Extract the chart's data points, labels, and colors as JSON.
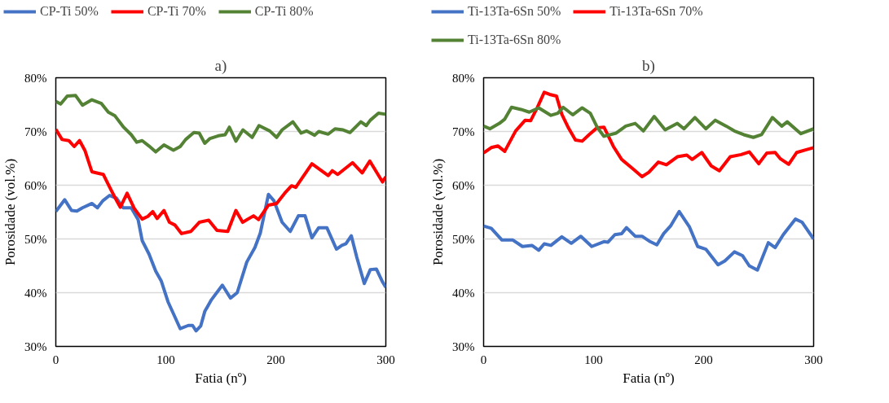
{
  "chart_data": [
    {
      "type": "line",
      "title": "a)",
      "xlabel": "Fatia (nº)",
      "ylabel": "Porosidade (vol.%)",
      "xlim": [
        0,
        300
      ],
      "xticks": [
        0,
        100,
        200,
        300
      ],
      "ylim": [
        30,
        80
      ],
      "yticks": [
        {
          "value": 30,
          "label": "30%"
        },
        {
          "value": 40,
          "label": "40%"
        },
        {
          "value": 50,
          "label": "50%"
        },
        {
          "value": 60,
          "label": "60%"
        },
        {
          "value": 70,
          "label": "70%"
        },
        {
          "value": 80,
          "label": "80%"
        }
      ],
      "grid": "y",
      "legend": "top",
      "marker": "none",
      "line_style": "solid",
      "series": [
        {
          "name": "CP-Ti 50%",
          "color": "#4472c4",
          "x": [
            0,
            8.1,
            14.3,
            19.2,
            24.2,
            32.8,
            37.8,
            42.7,
            48.9,
            55.1,
            61.2,
            68.6,
            74.8,
            78.5,
            84.7,
            90.8,
            95.8,
            102,
            106.9,
            113.1,
            120.5,
            124.3,
            127.5,
            131.7,
            135.4,
            141.5,
            151.4,
            158.8,
            164.9,
            173.6,
            181,
            185.9,
            193.3,
            198.3,
            205.7,
            213.1,
            220.5,
            226.6,
            232.8,
            239,
            246.4,
            255.1,
            260,
            263.7,
            268.6,
            273.6,
            280.4,
            285.9,
            291.4,
            297,
            300
          ],
          "values": [
            55.1,
            57.3,
            55.3,
            55.2,
            55.8,
            56.6,
            55.8,
            57.1,
            58.1,
            57.6,
            55.8,
            55.8,
            53.6,
            49.7,
            47.2,
            44,
            42.2,
            38.3,
            36.1,
            33.3,
            33.9,
            33.9,
            32.9,
            33.8,
            36.5,
            38.7,
            41.4,
            39,
            40,
            45.7,
            48.4,
            51.1,
            58.3,
            57.1,
            53.1,
            51.4,
            54.3,
            54.3,
            50.2,
            52.1,
            52.1,
            48.1,
            48.8,
            49.1,
            50.6,
            46.6,
            41.7,
            44.3,
            44.4,
            42,
            41
          ]
        },
        {
          "name": "CP-Ti 70%",
          "color": "#ff0000",
          "x": [
            0,
            5.7,
            11.8,
            16.7,
            21.6,
            26.6,
            32.8,
            39,
            43.2,
            49.3,
            54.3,
            58.6,
            64.8,
            71.5,
            78.5,
            83.7,
            88.1,
            92.1,
            98.3,
            103.3,
            108.2,
            114.3,
            122.8,
            130.4,
            139,
            146.5,
            156.3,
            163.7,
            169.8,
            179.7,
            184.3,
            193.3,
            200.7,
            208,
            214.3,
            218.1,
            232.8,
            247.6,
            251.3,
            256.3,
            269.8,
            278.5,
            285.4,
            297,
            300
          ],
          "values": [
            70.4,
            68.5,
            68.3,
            67.2,
            68.3,
            66.4,
            62.5,
            62.2,
            62,
            59.5,
            57.5,
            55.9,
            58.5,
            55.6,
            53.7,
            54.2,
            55.1,
            53.8,
            55.3,
            53.1,
            52.6,
            51,
            51.4,
            53.1,
            53.5,
            51.6,
            51.4,
            55.3,
            53.1,
            54.3,
            53.6,
            56.3,
            56.6,
            58.5,
            59.9,
            59.6,
            64,
            61.8,
            62.7,
            62,
            64.2,
            62.3,
            64.5,
            60.6,
            61.6
          ]
        },
        {
          "name": "CP-Ti 80%",
          "color": "#548235",
          "x": [
            0,
            4.4,
            10.4,
            18,
            24.2,
            32.8,
            41.5,
            47.7,
            53.8,
            61.2,
            68.6,
            73.6,
            78.5,
            84.7,
            90.8,
            98.3,
            106.9,
            113.1,
            118,
            125.5,
            130.4,
            135.4,
            140.2,
            147.7,
            153.9,
            157.8,
            163.7,
            170.1,
            178.5,
            184.7,
            194.5,
            200.7,
            205.7,
            215.5,
            223,
            227.9,
            235.3,
            239,
            247.6,
            253.8,
            261.2,
            267.4,
            277.3,
            282.2,
            285.9,
            293.3,
            300
          ],
          "values": [
            75.6,
            75.1,
            76.6,
            76.7,
            74.9,
            75.9,
            75.2,
            73.6,
            72.9,
            70.9,
            69.4,
            68,
            68.3,
            67.3,
            66.2,
            67.5,
            66.5,
            67.2,
            68.5,
            69.8,
            69.7,
            67.8,
            68.7,
            69.2,
            69.4,
            70.8,
            68.2,
            70.3,
            68.9,
            71.1,
            70.1,
            68.9,
            70.3,
            71.8,
            69.7,
            70.1,
            69.3,
            70,
            69.5,
            70.5,
            70.3,
            69.8,
            71.8,
            71.1,
            72.1,
            73.4,
            73.2
          ]
        }
      ]
    },
    {
      "type": "line",
      "title": "b)",
      "xlabel": "Fatia (nº)",
      "ylabel": "Porosidade (vol.%)",
      "xlim": [
        0,
        300
      ],
      "xticks": [
        0,
        100,
        200,
        300
      ],
      "ylim": [
        30,
        80
      ],
      "yticks": [
        {
          "value": 30,
          "label": "30%"
        },
        {
          "value": 40,
          "label": "40%"
        },
        {
          "value": 50,
          "label": "50%"
        },
        {
          "value": 60,
          "label": "60%"
        },
        {
          "value": 70,
          "label": "70%"
        },
        {
          "value": 80,
          "label": "80%"
        }
      ],
      "grid": "y",
      "legend": "top",
      "marker": "none",
      "line_style": "solid",
      "series": [
        {
          "name": "Ti-13Ta-6Sn 50%",
          "color": "#4472c4",
          "x": [
            0,
            6.9,
            16.7,
            26.6,
            35.3,
            43.9,
            50.1,
            55.1,
            61.2,
            71.1,
            79.7,
            88.4,
            98.3,
            109.4,
            113.1,
            119.3,
            125.5,
            129.9,
            137.8,
            144,
            151.4,
            157.5,
            163.7,
            169.9,
            177.8,
            187.2,
            194.6,
            202,
            213.1,
            219.3,
            228,
            235.3,
            241.5,
            248.9,
            258.8,
            265,
            272.4,
            283.5,
            289.6,
            300
          ],
          "values": [
            52.4,
            52,
            49.8,
            49.8,
            48.6,
            48.8,
            47.9,
            49.1,
            48.8,
            50.4,
            49.2,
            50.5,
            48.6,
            49.5,
            49.4,
            50.8,
            51,
            52.1,
            50.5,
            50.5,
            49.5,
            48.9,
            51,
            52.4,
            55.1,
            52.2,
            48.6,
            48.1,
            45.2,
            45.9,
            47.6,
            46.9,
            45,
            44.2,
            49.3,
            48.4,
            50.8,
            53.7,
            53.1,
            50
          ]
        },
        {
          "name": "Ti-13Ta-6Sn 70%",
          "color": "#ff0000",
          "x": [
            0,
            6.9,
            13.1,
            19.2,
            29.1,
            37.8,
            42.7,
            48.9,
            55.1,
            60,
            66.2,
            71.1,
            77.3,
            83.5,
            89.6,
            95.8,
            103.2,
            109.4,
            118,
            125.5,
            135.4,
            144,
            150.2,
            158.8,
            166.2,
            176.1,
            184.7,
            189.6,
            198.3,
            206.9,
            214.3,
            224.2,
            234.1,
            241.5,
            250.1,
            257.5,
            265,
            269.9,
            277.3,
            284.7,
            293.3,
            300
          ],
          "values": [
            66,
            67,
            67.3,
            66.3,
            70.1,
            72.1,
            72,
            74.5,
            77.3,
            76.9,
            76.6,
            73.2,
            70.6,
            68.4,
            68.2,
            69.4,
            70.7,
            70.8,
            67.2,
            64.8,
            63.1,
            61.6,
            62.4,
            64.3,
            63.8,
            65.3,
            65.6,
            64.8,
            66.1,
            63.6,
            62.7,
            65.3,
            65.7,
            66.2,
            64,
            66,
            66.1,
            64.9,
            63.9,
            66.1,
            66.6,
            67
          ]
        },
        {
          "name": "Ti-13Ta-6Sn 80%",
          "color": "#548235",
          "x": [
            0,
            5.7,
            14.3,
            19.2,
            25.4,
            34,
            41.5,
            50.1,
            61.2,
            67.4,
            72.3,
            81,
            89.6,
            97,
            103.2,
            109.4,
            120.5,
            129.2,
            137.8,
            145.2,
            155.1,
            165,
            176.1,
            182.2,
            192.1,
            202,
            210.6,
            220.5,
            227.9,
            236.5,
            245.2,
            252.6,
            262.5,
            271.1,
            276,
            288.4,
            300
          ],
          "values": [
            71,
            70.5,
            71.5,
            72.3,
            74.5,
            74.1,
            73.6,
            74.4,
            73,
            73.4,
            74.5,
            73.1,
            74.4,
            73.4,
            70.8,
            69.1,
            69.7,
            71,
            71.5,
            70.1,
            72.8,
            70.3,
            71.5,
            70.5,
            72.6,
            70.5,
            72.1,
            71,
            70.1,
            69.4,
            68.9,
            69.4,
            72.6,
            71,
            71.8,
            69.6,
            70.5
          ]
        }
      ]
    }
  ]
}
